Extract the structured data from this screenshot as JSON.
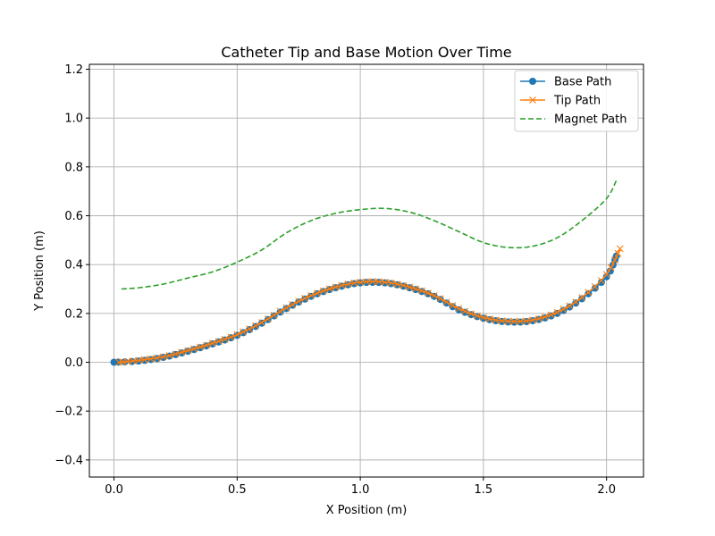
{
  "chart_data": {
    "type": "line",
    "title": "Catheter Tip and Base Motion Over Time",
    "xlabel": "X Position (m)",
    "ylabel": "Y Position (m)",
    "xlim": [
      -0.1,
      2.15
    ],
    "ylim": [
      -0.47,
      1.22
    ],
    "xticks": [
      0.0,
      0.5,
      1.0,
      1.5,
      2.0
    ],
    "xtick_labels": [
      "0.0",
      "0.5",
      "1.0",
      "1.5",
      "2.0"
    ],
    "yticks": [
      -0.4,
      -0.2,
      0.0,
      0.2,
      0.4,
      0.6,
      0.8,
      1.0,
      1.2
    ],
    "ytick_labels": [
      "−0.4",
      "−0.2",
      "0.0",
      "0.2",
      "0.4",
      "0.6",
      "0.8",
      "1.0",
      "1.2"
    ],
    "grid": true,
    "legend_position": "top-right",
    "series": [
      {
        "name": "Base Path",
        "color": "#1f77b4",
        "marker": "circle",
        "linestyle": "solid",
        "x": [
          0.0,
          0.1,
          0.2,
          0.3,
          0.4,
          0.5,
          0.6,
          0.7,
          0.8,
          0.9,
          1.0,
          1.1,
          1.2,
          1.3,
          1.4,
          1.5,
          1.6,
          1.7,
          1.8,
          1.9,
          2.0,
          2.04
        ],
        "y": [
          0.0,
          0.005,
          0.02,
          0.045,
          0.075,
          0.11,
          0.16,
          0.22,
          0.27,
          0.305,
          0.325,
          0.325,
          0.305,
          0.27,
          0.215,
          0.18,
          0.165,
          0.17,
          0.2,
          0.26,
          0.35,
          0.435
        ]
      },
      {
        "name": "Tip Path",
        "color": "#ff7f0e",
        "marker": "x",
        "linestyle": "solid",
        "x": [
          0.02,
          0.1,
          0.2,
          0.3,
          0.4,
          0.5,
          0.6,
          0.7,
          0.8,
          0.9,
          1.0,
          1.1,
          1.2,
          1.3,
          1.4,
          1.5,
          1.6,
          1.7,
          1.8,
          1.9,
          2.0,
          2.055
        ],
        "y": [
          0.0,
          0.008,
          0.022,
          0.048,
          0.078,
          0.113,
          0.163,
          0.223,
          0.273,
          0.308,
          0.328,
          0.328,
          0.308,
          0.273,
          0.22,
          0.183,
          0.168,
          0.173,
          0.205,
          0.265,
          0.36,
          0.465
        ]
      },
      {
        "name": "Magnet Path",
        "color": "#2ca02c",
        "marker": "none",
        "linestyle": "dashed",
        "x": [
          0.03,
          0.1,
          0.2,
          0.3,
          0.4,
          0.5,
          0.6,
          0.7,
          0.8,
          0.9,
          1.0,
          1.1,
          1.2,
          1.3,
          1.4,
          1.5,
          1.6,
          1.7,
          1.8,
          1.9,
          2.0,
          2.04
        ],
        "y": [
          0.3,
          0.305,
          0.32,
          0.345,
          0.37,
          0.41,
          0.46,
          0.53,
          0.58,
          0.61,
          0.625,
          0.63,
          0.615,
          0.58,
          0.535,
          0.49,
          0.47,
          0.475,
          0.51,
          0.58,
          0.67,
          0.745
        ]
      }
    ]
  }
}
